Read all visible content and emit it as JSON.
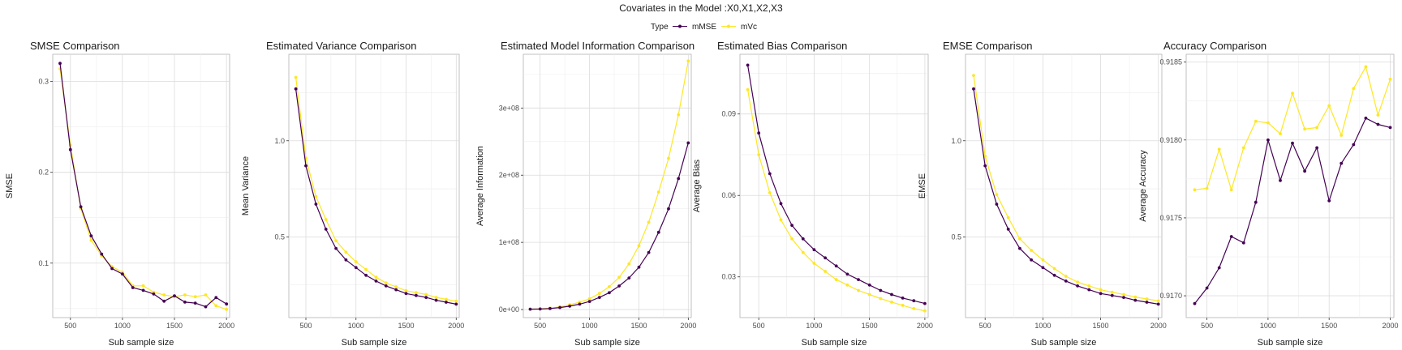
{
  "suptitle": "Covariates in the Model :X0,X1,X2,X3",
  "legend": {
    "title": "Type",
    "entries": [
      {
        "label": "mMSE",
        "color": "#440154"
      },
      {
        "label": "mVc",
        "color": "#FDE725"
      }
    ]
  },
  "chart_data": [
    {
      "type": "line",
      "title": "SMSE Comparison",
      "xlabel": "Sub sample size",
      "ylabel": "SMSE",
      "xlim": [
        330,
        2030
      ],
      "ylim": [
        0.04,
        0.33
      ],
      "xticks": [
        500,
        1000,
        1500,
        2000
      ],
      "xtick_labels": [
        "500",
        "1000",
        "1500",
        "2000"
      ],
      "yticks": [
        0.1,
        0.2,
        0.3
      ],
      "ytick_labels": [
        "0.1",
        "0.2",
        "0.3"
      ],
      "x": [
        400,
        500,
        600,
        700,
        800,
        900,
        1000,
        1100,
        1200,
        1300,
        1400,
        1500,
        1600,
        1700,
        1800,
        1900,
        2000
      ],
      "series": [
        {
          "name": "mMSE",
          "color": "#440154",
          "values": [
            0.32,
            0.225,
            0.162,
            0.13,
            0.11,
            0.094,
            0.088,
            0.073,
            0.07,
            0.066,
            0.058,
            0.064,
            0.057,
            0.056,
            0.052,
            0.062,
            0.055
          ]
        },
        {
          "name": "mVc",
          "color": "#FDE725",
          "values": [
            0.314,
            0.23,
            0.16,
            0.125,
            0.108,
            0.096,
            0.09,
            0.075,
            0.075,
            0.068,
            0.065,
            0.063,
            0.065,
            0.063,
            0.065,
            0.053,
            0.049
          ]
        }
      ]
    },
    {
      "type": "line",
      "title": "Estimated Variance Comparison",
      "xlabel": "Sub sample size",
      "ylabel": "Mean Variance",
      "xlim": [
        330,
        2030
      ],
      "ylim": [
        0.08,
        1.45
      ],
      "xticks": [
        500,
        1000,
        1500,
        2000
      ],
      "xtick_labels": [
        "500",
        "1000",
        "1500",
        "2000"
      ],
      "yticks": [
        0.5,
        1.0
      ],
      "ytick_labels": [
        "0.5",
        "1.0"
      ],
      "x": [
        400,
        500,
        600,
        700,
        800,
        900,
        1000,
        1100,
        1200,
        1300,
        1400,
        1500,
        1600,
        1700,
        1800,
        1900,
        2000
      ],
      "series": [
        {
          "name": "mMSE",
          "color": "#440154",
          "values": [
            1.27,
            0.87,
            0.67,
            0.54,
            0.44,
            0.38,
            0.34,
            0.3,
            0.27,
            0.245,
            0.225,
            0.205,
            0.195,
            0.185,
            0.17,
            0.16,
            0.15
          ]
        },
        {
          "name": "mVc",
          "color": "#FDE725",
          "values": [
            1.33,
            0.91,
            0.71,
            0.59,
            0.48,
            0.42,
            0.37,
            0.33,
            0.29,
            0.26,
            0.24,
            0.22,
            0.21,
            0.2,
            0.185,
            0.175,
            0.165
          ]
        }
      ]
    },
    {
      "type": "line",
      "title": "Estimated Model Information Comparison",
      "xlabel": "Sub sample size",
      "ylabel": "Average Information",
      "xlim": [
        330,
        2030
      ],
      "ylim": [
        -12000000,
        380000000
      ],
      "xticks": [
        500,
        1000,
        1500,
        2000
      ],
      "xtick_labels": [
        "500",
        "1000",
        "1500",
        "2000"
      ],
      "yticks": [
        0,
        100000000,
        200000000,
        300000000
      ],
      "ytick_labels": [
        "0e+00",
        "1e+08",
        "2e+08",
        "3e+08"
      ],
      "x": [
        400,
        500,
        600,
        700,
        800,
        900,
        1000,
        1100,
        1200,
        1300,
        1400,
        1500,
        1600,
        1700,
        1800,
        1900,
        2000
      ],
      "series": [
        {
          "name": "mMSE",
          "color": "#440154",
          "values": [
            500000,
            800000,
            1500000,
            3000000,
            5000000,
            8000000,
            12000000,
            18000000,
            25000000,
            35000000,
            47000000,
            63000000,
            85000000,
            115000000,
            150000000,
            195000000,
            248000000
          ]
        },
        {
          "name": "mVc",
          "color": "#FDE725",
          "values": [
            600000,
            1000000,
            2000000,
            4000000,
            7000000,
            11000000,
            16000000,
            24000000,
            34000000,
            48000000,
            68000000,
            95000000,
            130000000,
            175000000,
            225000000,
            290000000,
            370000000
          ]
        }
      ]
    },
    {
      "type": "line",
      "title": "Estimated Bias Comparison",
      "xlabel": "Sub sample size",
      "ylabel": "Average Bias",
      "xlim": [
        330,
        2030
      ],
      "ylim": [
        0.015,
        0.112
      ],
      "xticks": [
        500,
        1000,
        1500,
        2000
      ],
      "xtick_labels": [
        "500",
        "1000",
        "1500",
        "2000"
      ],
      "yticks": [
        0.03,
        0.06,
        0.09
      ],
      "ytick_labels": [
        "0.03",
        "0.06",
        "0.09"
      ],
      "x": [
        400,
        500,
        600,
        700,
        800,
        900,
        1000,
        1100,
        1200,
        1300,
        1400,
        1500,
        1600,
        1700,
        1800,
        1900,
        2000
      ],
      "series": [
        {
          "name": "mMSE",
          "color": "#440154",
          "values": [
            0.108,
            0.083,
            0.068,
            0.057,
            0.049,
            0.044,
            0.04,
            0.037,
            0.034,
            0.031,
            0.029,
            0.027,
            0.025,
            0.0235,
            0.0222,
            0.0212,
            0.0202
          ]
        },
        {
          "name": "mVc",
          "color": "#FDE725",
          "values": [
            0.099,
            0.075,
            0.061,
            0.051,
            0.044,
            0.039,
            0.035,
            0.032,
            0.029,
            0.027,
            0.025,
            0.0235,
            0.022,
            0.0207,
            0.0195,
            0.0183,
            0.0175
          ]
        }
      ]
    },
    {
      "type": "line",
      "title": "EMSE Comparison",
      "xlabel": "Sub sample size",
      "ylabel": "EMSE",
      "xlim": [
        330,
        2030
      ],
      "ylim": [
        0.08,
        1.45
      ],
      "xticks": [
        500,
        1000,
        1500,
        2000
      ],
      "xtick_labels": [
        "500",
        "1000",
        "1500",
        "2000"
      ],
      "yticks": [
        0.5,
        1.0
      ],
      "ytick_labels": [
        "0.5",
        "1.0"
      ],
      "x": [
        400,
        500,
        600,
        700,
        800,
        900,
        1000,
        1100,
        1200,
        1300,
        1400,
        1500,
        1600,
        1700,
        1800,
        1900,
        2000
      ],
      "series": [
        {
          "name": "mMSE",
          "color": "#440154",
          "values": [
            1.27,
            0.87,
            0.67,
            0.54,
            0.44,
            0.38,
            0.34,
            0.3,
            0.27,
            0.245,
            0.225,
            0.205,
            0.195,
            0.185,
            0.17,
            0.16,
            0.15
          ]
        },
        {
          "name": "mVc",
          "color": "#FDE725",
          "values": [
            1.34,
            0.92,
            0.72,
            0.6,
            0.49,
            0.43,
            0.38,
            0.335,
            0.295,
            0.265,
            0.245,
            0.225,
            0.212,
            0.2,
            0.187,
            0.177,
            0.167
          ]
        }
      ]
    },
    {
      "type": "line",
      "title": "Accuracy Comparison",
      "xlabel": "Sub sample size",
      "ylabel": "Average Accuracy",
      "xlim": [
        330,
        2030
      ],
      "ylim": [
        0.91686,
        0.91855
      ],
      "xticks": [
        500,
        1000,
        1500,
        2000
      ],
      "xtick_labels": [
        "500",
        "1000",
        "1500",
        "2000"
      ],
      "yticks": [
        0.917,
        0.9175,
        0.918,
        0.9185
      ],
      "ytick_labels": [
        "0.9170",
        "0.9175",
        "0.9180",
        "0.9185"
      ],
      "x": [
        400,
        500,
        600,
        700,
        800,
        900,
        1000,
        1100,
        1200,
        1300,
        1400,
        1500,
        1600,
        1700,
        1800,
        1900,
        2000
      ],
      "series": [
        {
          "name": "mMSE",
          "color": "#440154",
          "values": [
            0.91695,
            0.91705,
            0.91718,
            0.91738,
            0.91734,
            0.9176,
            0.918,
            0.91774,
            0.91798,
            0.9178,
            0.91795,
            0.91761,
            0.91785,
            0.91797,
            0.91814,
            0.9181,
            0.91808
          ]
        },
        {
          "name": "mVc",
          "color": "#FDE725",
          "values": [
            0.91768,
            0.91769,
            0.91794,
            0.91768,
            0.91795,
            0.91812,
            0.91811,
            0.91804,
            0.9183,
            0.91807,
            0.91808,
            0.91822,
            0.91803,
            0.91833,
            0.91847,
            0.91816,
            0.91839
          ]
        }
      ]
    }
  ]
}
